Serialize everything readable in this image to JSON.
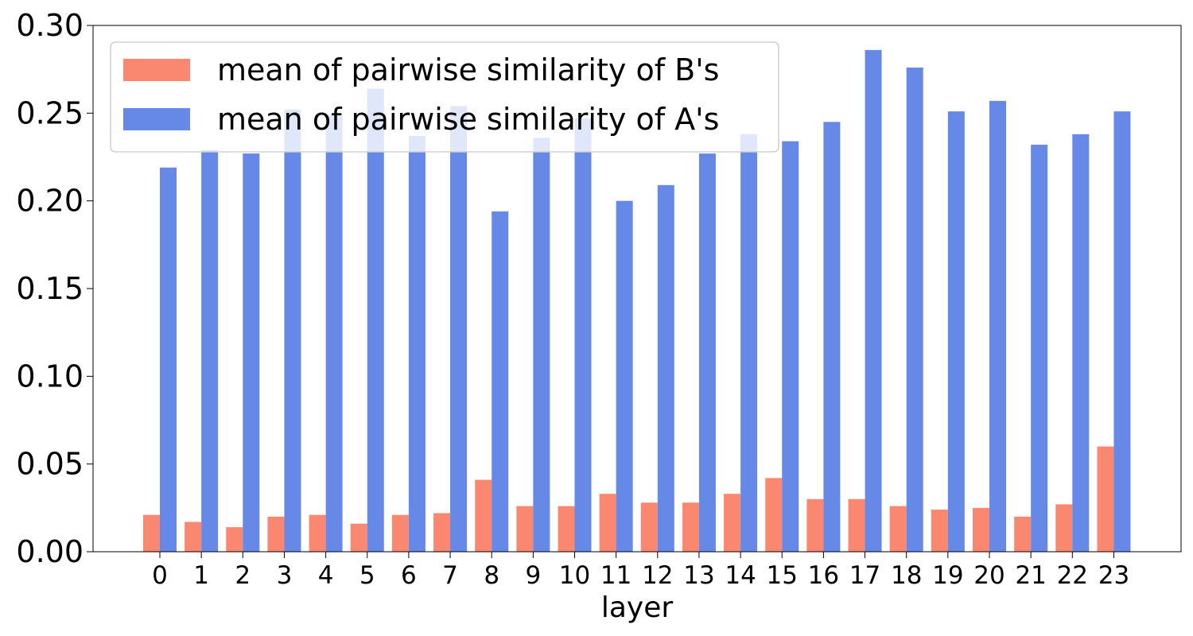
{
  "chart_data": {
    "type": "bar",
    "title": "",
    "xlabel": "layer",
    "ylabel": "",
    "categories": [
      "0",
      "1",
      "2",
      "3",
      "4",
      "5",
      "6",
      "7",
      "8",
      "9",
      "10",
      "11",
      "12",
      "13",
      "14",
      "15",
      "16",
      "17",
      "18",
      "19",
      "20",
      "21",
      "22",
      "23"
    ],
    "ylim": [
      0,
      0.3
    ],
    "yticks": [
      "0.00",
      "0.05",
      "0.10",
      "0.15",
      "0.20",
      "0.25",
      "0.30"
    ],
    "grid": false,
    "legend_position": "top-left",
    "series": [
      {
        "name": "mean of pairwise similarity of B's",
        "color": "#fa8770",
        "values": [
          0.021,
          0.017,
          0.014,
          0.02,
          0.021,
          0.016,
          0.021,
          0.022,
          0.041,
          0.026,
          0.026,
          0.033,
          0.028,
          0.028,
          0.033,
          0.042,
          0.03,
          0.03,
          0.026,
          0.024,
          0.025,
          0.02,
          0.027,
          0.06
        ]
      },
      {
        "name": "mean of pairwise similarity of A's",
        "color": "#6688e6",
        "values": [
          0.219,
          0.229,
          0.227,
          0.252,
          0.249,
          0.264,
          0.237,
          0.254,
          0.194,
          0.236,
          0.247,
          0.2,
          0.209,
          0.227,
          0.238,
          0.234,
          0.245,
          0.286,
          0.276,
          0.251,
          0.257,
          0.232,
          0.238,
          0.251
        ]
      }
    ]
  }
}
